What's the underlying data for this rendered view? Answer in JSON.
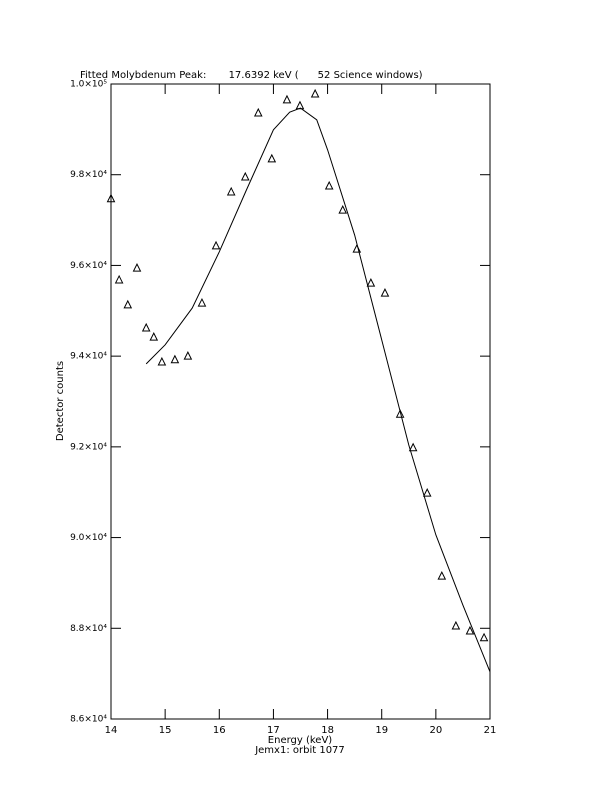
{
  "chart_data": {
    "type": "scatter",
    "title": "Fitted Molybdenum Peak:       17.6392 keV (      52 Science windows)",
    "x_label": "Energy (keV)",
    "subtitle": "Jemx1: orbit 1077",
    "y_label": "Detector counts",
    "xlim": [
      14,
      21
    ],
    "xticks": [
      14,
      15,
      16,
      17,
      18,
      19,
      20,
      21
    ],
    "ylim": [
      86000,
      100000
    ],
    "yticks": [
      {
        "value": 86000,
        "label": "8.6×10⁴"
      },
      {
        "value": 88000,
        "label": "8.8×10⁴"
      },
      {
        "value": 90000,
        "label": "9.0×10⁴"
      },
      {
        "value": 92000,
        "label": "9.2×10⁴"
      },
      {
        "value": 94000,
        "label": "9.4×10⁴"
      },
      {
        "value": 96000,
        "label": "9.6×10⁴"
      },
      {
        "value": 98000,
        "label": "9.8×10⁴"
      },
      {
        "value": 100000,
        "label": "1.0×10⁵"
      }
    ],
    "color": "#000000",
    "series": [
      {
        "type": "scatter",
        "marker": "triangle",
        "x": [
          14.0,
          14.15,
          14.31,
          14.48,
          14.65,
          14.79,
          14.94,
          15.18,
          15.42,
          15.68,
          15.94,
          16.22,
          16.48,
          16.72,
          16.97,
          17.25,
          17.49,
          17.77,
          18.03,
          18.28,
          18.54,
          18.8,
          19.06,
          19.34,
          19.58,
          19.84,
          20.11,
          20.37,
          20.63,
          20.89
        ],
        "values": [
          97470,
          95680,
          95130,
          95940,
          94620,
          94420,
          93870,
          93920,
          94000,
          95170,
          96430,
          97620,
          97950,
          99360,
          98350,
          99650,
          99520,
          99780,
          97750,
          97220,
          96360,
          95610,
          95390,
          92720,
          91980,
          90980,
          89150,
          88050,
          87940,
          87790
        ]
      },
      {
        "type": "line",
        "x": [
          14.65,
          15.0,
          15.5,
          16.0,
          16.5,
          17.0,
          17.3,
          17.5,
          17.8,
          18.0,
          18.5,
          19.0,
          19.5,
          20.0,
          20.5,
          21.0
        ],
        "values": [
          93830,
          94250,
          95060,
          96300,
          97660,
          98990,
          99380,
          99470,
          99210,
          98550,
          96670,
          94360,
          92040,
          90060,
          88510,
          87040
        ]
      }
    ]
  }
}
